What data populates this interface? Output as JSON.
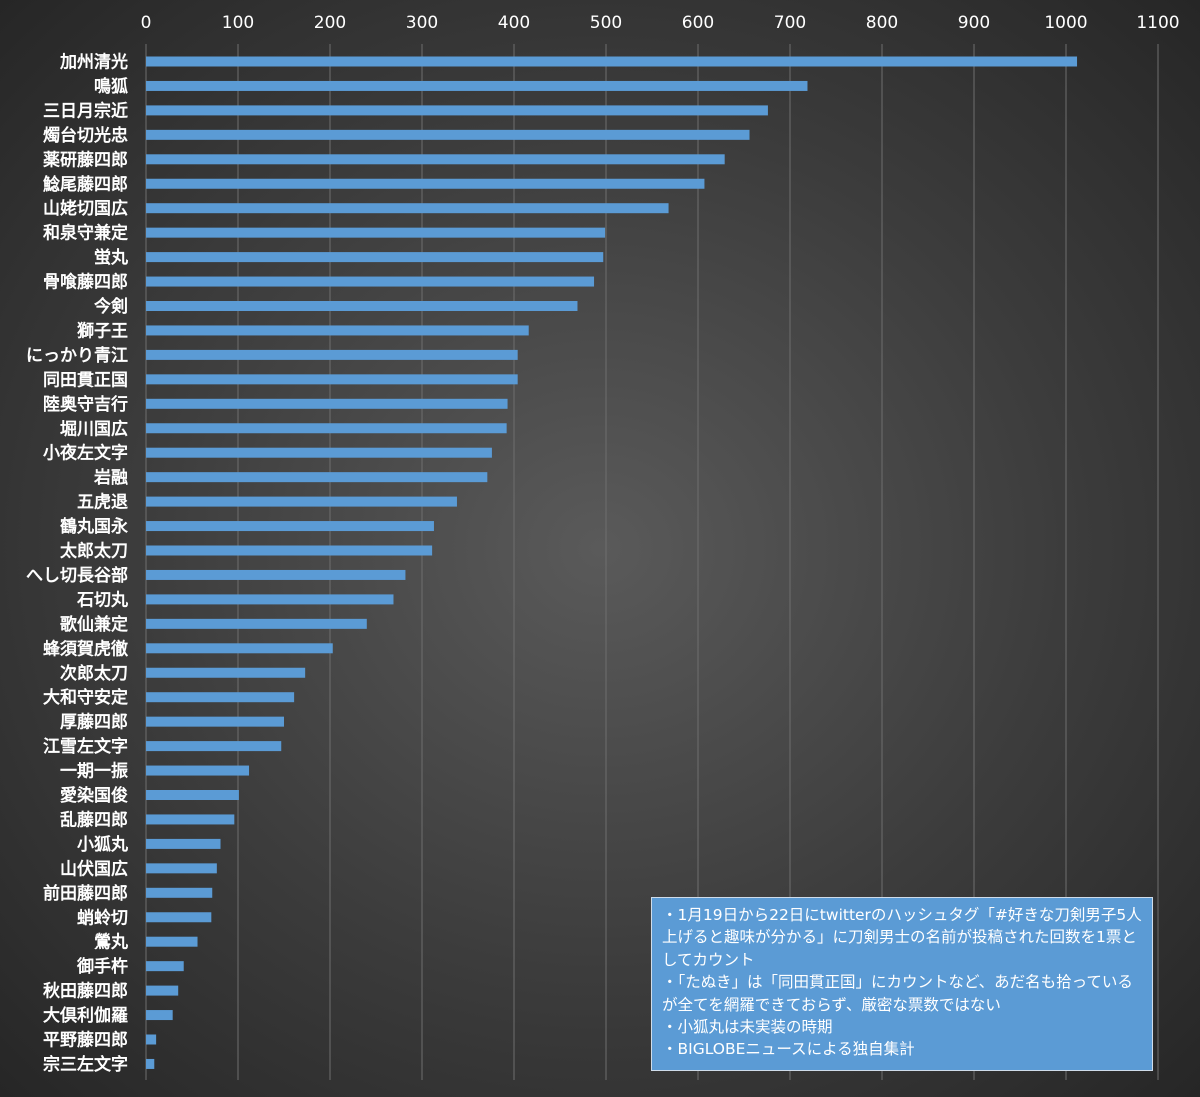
{
  "chart_data": {
    "type": "bar",
    "orientation": "horizontal",
    "title": "",
    "xlabel": "",
    "ylabel": "",
    "xlim": [
      0,
      1100
    ],
    "ticks": [
      "0",
      "100",
      "200",
      "300",
      "400",
      "500",
      "600",
      "700",
      "800",
      "900",
      "1000",
      "1100"
    ],
    "grid": true,
    "bar_color": "#5b9bd5",
    "categories": [
      "加州清光",
      "鳴狐",
      "三日月宗近",
      "燭台切光忠",
      "薬研藤四郎",
      "鯰尾藤四郎",
      "山姥切国広",
      "和泉守兼定",
      "蛍丸",
      "骨喰藤四郎",
      "今剣",
      "獅子王",
      "にっかり青江",
      "同田貫正国",
      "陸奥守吉行",
      "堀川国広",
      "小夜左文字",
      "岩融",
      "五虎退",
      "鶴丸国永",
      "太郎太刀",
      "へし切長谷部",
      "石切丸",
      "歌仙兼定",
      "蜂須賀虎徹",
      "次郎太刀",
      "大和守安定",
      "厚藤四郎",
      "江雪左文字",
      "一期一振",
      "愛染国俊",
      "乱藤四郎",
      "小狐丸",
      "山伏国広",
      "前田藤四郎",
      "蛸蛉切",
      "鶯丸",
      "御手杵",
      "秋田藤四郎",
      "大倶利伽羅",
      "平野藤四郎",
      "宗三左文字"
    ],
    "values": [
      1012,
      719,
      676,
      656,
      629,
      607,
      568,
      499,
      497,
      487,
      469,
      416,
      404,
      404,
      393,
      392,
      376,
      371,
      338,
      313,
      311,
      282,
      269,
      240,
      203,
      173,
      161,
      150,
      147,
      112,
      101,
      96,
      81,
      77,
      72,
      71,
      56,
      41,
      35,
      29,
      11,
      9
    ]
  },
  "notes": [
    "・1月19日から22日にtwitterのハッシュタグ「#好きな刀剣男子5人上げると趣味が分かる」に刀剣男士の名前が投稿された回数を1票としてカウント",
    "・「たぬき」は「同田貫正国」にカウントなど、あだ名も拾っているが全てを網羅できておらず、厳密な票数ではない",
    "・小狐丸は未実装の時期",
    "・BIGLOBEニュースによる独自集計"
  ]
}
